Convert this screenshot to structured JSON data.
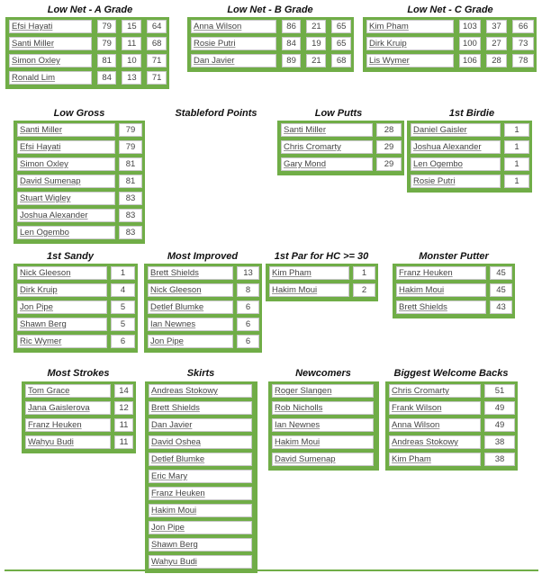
{
  "accent_color": "#70ad47",
  "tables": [
    {
      "id": "low-net-a",
      "title": "Low Net - A Grade",
      "rows": [
        [
          "Efsi Hayati",
          "79",
          "15",
          "64"
        ],
        [
          "Santi Miller",
          "79",
          "11",
          "68"
        ],
        [
          "Simon Oxley",
          "81",
          "10",
          "71"
        ],
        [
          "Ronald Lim",
          "84",
          "13",
          "71"
        ]
      ]
    },
    {
      "id": "low-net-b",
      "title": "Low Net - B Grade",
      "rows": [
        [
          "Anna Wilson",
          "86",
          "21",
          "65"
        ],
        [
          "Rosie Putri",
          "84",
          "19",
          "65"
        ],
        [
          "Dan Javier",
          "89",
          "21",
          "68"
        ]
      ]
    },
    {
      "id": "low-net-c",
      "title": "Low Net - C Grade",
      "rows": [
        [
          "Kim Pham",
          "103",
          "37",
          "66"
        ],
        [
          "Dirk Kruip",
          "100",
          "27",
          "73"
        ],
        [
          "Lis Wymer",
          "106",
          "28",
          "78"
        ]
      ]
    },
    {
      "id": "low-gross",
      "title": "Low Gross",
      "rows": [
        [
          "Santi Miller",
          "79"
        ],
        [
          "Efsi Hayati",
          "79"
        ],
        [
          "Simon Oxley",
          "81"
        ],
        [
          "David Sumenap",
          "81"
        ],
        [
          "Stuart Wigley",
          "83"
        ],
        [
          "Joshua Alexander",
          "83"
        ],
        [
          "Len Ogembo",
          "83"
        ]
      ]
    },
    {
      "id": "stableford",
      "title": "Stableford Points",
      "rows": []
    },
    {
      "id": "low-putts",
      "title": "Low Putts",
      "rows": [
        [
          "Santi Miller",
          "28"
        ],
        [
          "Chris Cromarty",
          "29"
        ],
        [
          "Gary Mond",
          "29"
        ]
      ]
    },
    {
      "id": "first-birdie",
      "title": "1st Birdie",
      "rows": [
        [
          "Daniel Gaisler",
          "1"
        ],
        [
          "Joshua Alexander",
          "1"
        ],
        [
          "Len Ogembo",
          "1"
        ],
        [
          "Rosie Putri",
          "1"
        ]
      ]
    },
    {
      "id": "first-sandy",
      "title": "1st Sandy",
      "rows": [
        [
          "Nick Gleeson",
          "1"
        ],
        [
          "Dirk Kruip",
          "4"
        ],
        [
          "Jon Pipe",
          "5"
        ],
        [
          "Shawn Berg",
          "5"
        ],
        [
          "Ric Wymer",
          "6"
        ]
      ]
    },
    {
      "id": "most-improved",
      "title": "Most Improved",
      "rows": [
        [
          "Brett Shields",
          "13"
        ],
        [
          "Nick Gleeson",
          "8"
        ],
        [
          "Detlef Blumke",
          "6"
        ],
        [
          "Ian Newnes",
          "6"
        ],
        [
          "Jon Pipe",
          "6"
        ]
      ]
    },
    {
      "id": "first-par-hc30",
      "title": "1st Par for HC >= 30",
      "rows": [
        [
          "Kim Pham",
          "1"
        ],
        [
          "Hakim Moui",
          "2"
        ]
      ]
    },
    {
      "id": "monster-putter",
      "title": "Monster Putter",
      "rows": [
        [
          "Franz Heuken",
          "45"
        ],
        [
          "Hakim Moui",
          "45"
        ],
        [
          "Brett Shields",
          "43"
        ]
      ]
    },
    {
      "id": "most-strokes",
      "title": "Most Strokes",
      "rows": [
        [
          "Tom Grace",
          "14"
        ],
        [
          "Jana Gaislerova",
          "12"
        ],
        [
          "Franz Heuken",
          "11"
        ],
        [
          "Wahyu Budi",
          "11"
        ]
      ]
    },
    {
      "id": "skirts",
      "title": "Skirts",
      "rows": [
        [
          "Andreas Stokowy"
        ],
        [
          "Brett Shields"
        ],
        [
          "Dan Javier"
        ],
        [
          "David Oshea"
        ],
        [
          "Detlef Blumke"
        ],
        [
          "Eric Mary"
        ],
        [
          "Franz Heuken"
        ],
        [
          "Hakim Moui"
        ],
        [
          "Jon Pipe"
        ],
        [
          "Shawn Berg"
        ],
        [
          "Wahyu Budi"
        ]
      ]
    },
    {
      "id": "newcomers",
      "title": "Newcomers",
      "rows": [
        [
          "Roger Slangen"
        ],
        [
          "Rob Nicholls"
        ],
        [
          "Ian Newnes"
        ],
        [
          "Hakim Moui"
        ],
        [
          "David Sumenap"
        ]
      ]
    },
    {
      "id": "welcome-backs",
      "title": "Biggest Welcome Backs",
      "rows": [
        [
          "Chris Cromarty",
          "51"
        ],
        [
          "Frank Wilson",
          "49"
        ],
        [
          "Anna Wilson",
          "49"
        ],
        [
          "Andreas Stokowy",
          "38"
        ],
        [
          "Kim Pham",
          "38"
        ]
      ]
    }
  ]
}
